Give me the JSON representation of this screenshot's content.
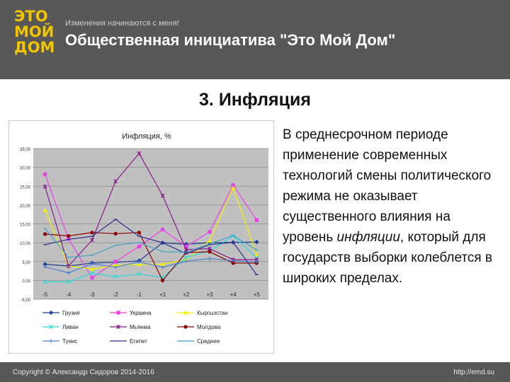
{
  "header": {
    "logo_lines": [
      "ЭТО",
      "МОЙ",
      "ДОМ"
    ],
    "tagline": "Изменения начинаются с меня!",
    "title": "Общественная инициатива \"Это Мой Дом\""
  },
  "slide": {
    "title": "3. Инфляция",
    "body_before": "В среднесрочном периоде применение современных технологий смены политического режима не оказывает существенного влияния на уровень ",
    "body_italic": "инфляции",
    "body_after": ", который для государств выборки колеблется в широких пределах."
  },
  "footer": {
    "copyright": "Copyright © Александр Сидоров 2014-2016",
    "site": "http://emd.su"
  },
  "colors": {
    "header_bg": "#585858",
    "plot_bg": "#c0c0c0",
    "logo": "#f2c500"
  },
  "chart_data": {
    "type": "line",
    "title": "Инфляция, %",
    "xlabel": "",
    "ylabel": "",
    "categories": [
      "-5",
      "-4",
      "-3",
      "-2",
      "-1",
      "+1",
      "+2",
      "+3",
      "+4",
      "+5"
    ],
    "yticks": [
      "-5,00",
      "0,00",
      "5,00",
      "10,00",
      "15,00",
      "20,00",
      "25,00",
      "30,00",
      "35,00"
    ],
    "ylim": [
      -5,
      35
    ],
    "grid": true,
    "legend_position": "bottom",
    "series": [
      {
        "name": "Грузия",
        "color": "#1f3a93",
        "marker": "diamond",
        "values": [
          4.3,
          3.8,
          4.6,
          4.8,
          5.2,
          10.0,
          9.6,
          10.0,
          10.1,
          10.2
        ]
      },
      {
        "name": "Украина",
        "color": "#e83fe8",
        "marker": "square",
        "values": [
          28.2,
          11.0,
          0.7,
          5.0,
          9.0,
          13.5,
          9.0,
          12.9,
          25.3,
          16.0
        ]
      },
      {
        "name": "Кыргызстан",
        "color": "#f2f200",
        "marker": "triangle",
        "values": [
          18.6,
          3.8,
          3.0,
          4.0,
          4.3,
          4.3,
          5.5,
          10.5,
          24.5,
          6.8
        ]
      },
      {
        "name": "Ливан",
        "color": "#2bd9d9",
        "marker": "x",
        "values": [
          -0.4,
          -0.4,
          1.9,
          1.0,
          1.7,
          0.8,
          6.1,
          7.8,
          11.8,
          6.0
        ]
      },
      {
        "name": "Мьянма",
        "color": "#8b1a8b",
        "marker": "star",
        "values": [
          24.9,
          3.8,
          10.7,
          26.3,
          33.7,
          22.5,
          8.2,
          8.4,
          5.5,
          5.5
        ]
      },
      {
        "name": "Молдова",
        "color": "#8b0000",
        "marker": "circle",
        "values": [
          12.3,
          11.8,
          12.7,
          12.4,
          12.7,
          0.0,
          7.4,
          7.6,
          4.6,
          4.6
        ]
      },
      {
        "name": "Тунис",
        "color": "#4a7fd0",
        "marker": "plus",
        "values": [
          3.6,
          2.0,
          4.4,
          3.5,
          4.9,
          3.5,
          5.1,
          5.8,
          5.2,
          4.9
        ]
      },
      {
        "name": "Египет",
        "color": "#2e2e8f",
        "marker": "dash",
        "values": [
          9.5,
          10.9,
          11.7,
          16.2,
          11.7,
          10.0,
          7.1,
          9.5,
          10.1,
          1.5
        ]
      },
      {
        "name": "Среднее",
        "color": "#43a3c6",
        "marker": "dash",
        "values": [
          13.8,
          6.1,
          6.7,
          9.3,
          10.1,
          7.6,
          7.5,
          9.7,
          11.9,
          8.1
        ]
      }
    ]
  }
}
